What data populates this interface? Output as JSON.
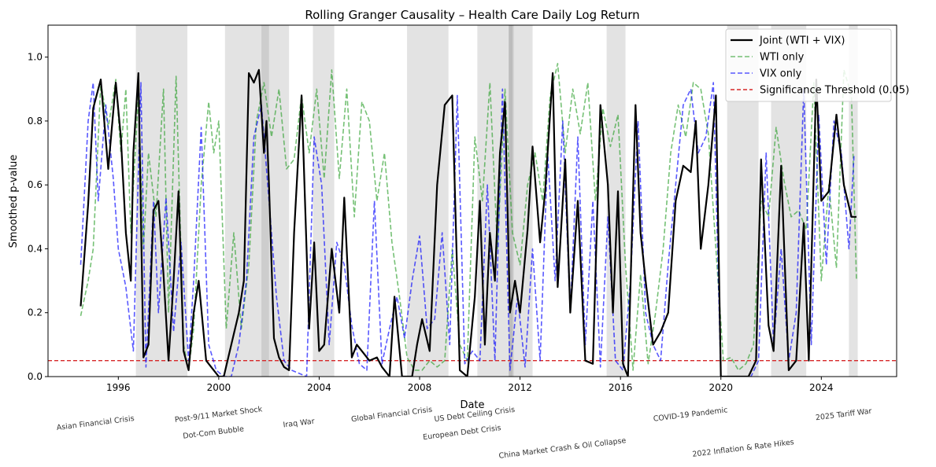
{
  "chart_data": {
    "type": "line",
    "title": "Rolling Granger Causality – Health Care Daily Log Return",
    "xlabel": "Date",
    "ylabel": "Smoothed p-value",
    "xlim": [
      1993.2,
      2027.0
    ],
    "ylim": [
      0.0,
      1.1
    ],
    "x_ticks": [
      1996,
      2000,
      2004,
      2008,
      2012,
      2016,
      2020,
      2024
    ],
    "y_ticks": [
      0.0,
      0.2,
      0.4,
      0.6,
      0.8,
      1.0
    ],
    "y_tick_labels": [
      "0.0",
      "0.2",
      "0.4",
      "0.6",
      "0.8",
      "1.0"
    ],
    "grid": false,
    "legend_position": "top-right",
    "threshold": {
      "name": "Significance Threshold (0.05)",
      "value": 0.05,
      "color": "#d62728",
      "style": "dashed"
    },
    "shaded_periods": [
      {
        "label": "Asian Financial Crisis",
        "start": 1996.7,
        "end": 1998.75
      },
      {
        "label": "Dot-Com Bubble",
        "start": 2000.25,
        "end": 2002.8
      },
      {
        "label": "Post-9/11 Market Shock",
        "start": 2001.7,
        "end": 2002.0
      },
      {
        "label": "Iraq War",
        "start": 2003.75,
        "end": 2004.6
      },
      {
        "label": "Global Financial Crisis",
        "start": 2007.5,
        "end": 2009.15
      },
      {
        "label": "European Debt Crisis",
        "start": 2010.3,
        "end": 2011.75
      },
      {
        "label": "US Debt Ceiling Crisis",
        "start": 2011.55,
        "end": 2011.7
      },
      {
        "label": "China Market Crash & Oil Collapse",
        "start": 2011.55,
        "end": 2012.5
      },
      {
        "label": "China Market Crash & Oil Collapse",
        "start": 2015.45,
        "end": 2016.2
      },
      {
        "label": "COVID-19 Pandemic",
        "start": 2020.25,
        "end": 2021.5
      },
      {
        "label": "2022 Inflation & Rate Hikes",
        "start": 2022.0,
        "end": 2023.4
      },
      {
        "label": "2025 Tariff War",
        "start": 2025.1,
        "end": 2025.45
      }
    ],
    "event_labels": [
      {
        "text": "Asian Financial Crisis",
        "x": 1995.1,
        "row": 1
      },
      {
        "text": "Post-9/11 Market Shock",
        "x": 2000.0,
        "row": 0
      },
      {
        "text": "Dot-Com Bubble",
        "x": 1999.8,
        "row": 2
      },
      {
        "text": "Iraq War",
        "x": 2003.2,
        "row": 1
      },
      {
        "text": "Global Financial Crisis",
        "x": 2006.9,
        "row": 0
      },
      {
        "text": "US Debt Ceiling Crisis",
        "x": 2010.2,
        "row": 0
      },
      {
        "text": "European Debt Crisis",
        "x": 2009.7,
        "row": 2
      },
      {
        "text": "China Market Crash & Oil Collapse",
        "x": 2013.7,
        "row": 3
      },
      {
        "text": "COVID-19 Pandemic",
        "x": 2018.8,
        "row": 0
      },
      {
        "text": "2022 Inflation & Rate Hikes",
        "x": 2020.9,
        "row": 3
      },
      {
        "text": "2025 Tariff War",
        "x": 2024.9,
        "row": 0
      }
    ],
    "series": [
      {
        "name": "Joint (WTI + VIX)",
        "color": "#000000",
        "style": "solid",
        "x": [
          1994.5,
          1994.8,
          1995.0,
          1995.3,
          1995.6,
          1995.9,
          1996.1,
          1996.3,
          1996.5,
          1996.6,
          1996.8,
          1997.0,
          1997.2,
          1997.4,
          1997.6,
          1997.8,
          1998.0,
          1998.2,
          1998.4,
          1998.6,
          1998.8,
          1999.0,
          1999.2,
          1999.5,
          1999.8,
          2000.0,
          2000.2,
          2000.5,
          2000.8,
          2001.0,
          2001.2,
          2001.4,
          2001.6,
          2001.8,
          2001.9,
          2002.0,
          2002.2,
          2002.4,
          2002.6,
          2002.8,
          2003.0,
          2003.3,
          2003.6,
          2003.8,
          2004.0,
          2004.2,
          2004.5,
          2004.8,
          2005.0,
          2005.3,
          2005.5,
          2005.8,
          2006.0,
          2006.3,
          2006.5,
          2006.8,
          2007.0,
          2007.3,
          2007.5,
          2007.7,
          2007.9,
          2008.1,
          2008.4,
          2008.7,
          2009.0,
          2009.3,
          2009.6,
          2009.9,
          2010.2,
          2010.4,
          2010.6,
          2010.8,
          2011.0,
          2011.2,
          2011.4,
          2011.6,
          2011.8,
          2012.0,
          2012.3,
          2012.5,
          2012.8,
          2013.0,
          2013.3,
          2013.5,
          2013.8,
          2014.0,
          2014.3,
          2014.6,
          2014.9,
          2015.2,
          2015.5,
          2015.7,
          2015.9,
          2016.1,
          2016.3,
          2016.6,
          2016.8,
          2017.0,
          2017.3,
          2017.6,
          2017.9,
          2018.2,
          2018.5,
          2018.8,
          2019.0,
          2019.2,
          2019.5,
          2019.8,
          2020.0,
          2020.2,
          2020.5,
          2020.8,
          2021.1,
          2021.4,
          2021.6,
          2021.9,
          2022.1,
          2022.4,
          2022.7,
          2023.0,
          2023.3,
          2023.5,
          2023.8,
          2024.0,
          2024.3,
          2024.6,
          2024.9,
          2025.2,
          2025.4
        ],
        "values": [
          0.22,
          0.54,
          0.84,
          0.93,
          0.65,
          0.92,
          0.75,
          0.45,
          0.3,
          0.7,
          0.95,
          0.06,
          0.1,
          0.52,
          0.55,
          0.32,
          0.05,
          0.3,
          0.58,
          0.08,
          0.02,
          0.2,
          0.3,
          0.05,
          0.02,
          0.0,
          0.0,
          0.1,
          0.2,
          0.3,
          0.95,
          0.92,
          0.96,
          0.7,
          0.8,
          0.6,
          0.12,
          0.06,
          0.03,
          0.02,
          0.45,
          0.88,
          0.15,
          0.42,
          0.08,
          0.1,
          0.4,
          0.2,
          0.56,
          0.06,
          0.1,
          0.07,
          0.05,
          0.06,
          0.03,
          0.0,
          0.25,
          0.0,
          0.0,
          0.0,
          0.1,
          0.18,
          0.08,
          0.6,
          0.85,
          0.88,
          0.02,
          0.0,
          0.25,
          0.55,
          0.1,
          0.45,
          0.3,
          0.7,
          0.86,
          0.2,
          0.3,
          0.2,
          0.46,
          0.72,
          0.42,
          0.58,
          0.95,
          0.28,
          0.68,
          0.2,
          0.55,
          0.05,
          0.04,
          0.85,
          0.6,
          0.2,
          0.58,
          0.04,
          0.0,
          0.85,
          0.45,
          0.3,
          0.1,
          0.14,
          0.2,
          0.55,
          0.66,
          0.64,
          0.8,
          0.4,
          0.6,
          0.88,
          0.0,
          0.0,
          0.0,
          0.0,
          0.0,
          0.05,
          0.68,
          0.16,
          0.08,
          0.66,
          0.02,
          0.05,
          0.48,
          0.05,
          0.93,
          0.55,
          0.58,
          0.82,
          0.6,
          0.5,
          0.5
        ]
      },
      {
        "name": "WTI only",
        "color": "#2ca02c",
        "style": "dashed",
        "x": [
          1994.5,
          1994.8,
          1995.0,
          1995.3,
          1995.6,
          1995.9,
          1996.1,
          1996.3,
          1996.5,
          1996.8,
          1997.0,
          1997.2,
          1997.5,
          1997.8,
          1998.0,
          1998.3,
          1998.6,
          1998.8,
          1999.0,
          1999.3,
          1999.6,
          1999.8,
          2000.0,
          2000.3,
          2000.6,
          2000.9,
          2001.2,
          2001.5,
          2001.8,
          2002.1,
          2002.4,
          2002.7,
          2003.0,
          2003.3,
          2003.6,
          2003.9,
          2004.2,
          2004.5,
          2004.8,
          2005.1,
          2005.4,
          2005.7,
          2006.0,
          2006.3,
          2006.6,
          2006.9,
          2007.2,
          2007.5,
          2007.8,
          2008.1,
          2008.4,
          2008.7,
          2009.0,
          2009.3,
          2009.6,
          2009.9,
          2010.2,
          2010.5,
          2010.8,
          2011.1,
          2011.4,
          2011.7,
          2012.0,
          2012.3,
          2012.6,
          2012.9,
          2013.2,
          2013.5,
          2013.8,
          2014.1,
          2014.4,
          2014.7,
          2015.0,
          2015.3,
          2015.6,
          2015.9,
          2016.2,
          2016.5,
          2016.8,
          2017.1,
          2017.4,
          2017.7,
          2018.0,
          2018.3,
          2018.6,
          2018.9,
          2019.2,
          2019.5,
          2019.8,
          2020.1,
          2020.4,
          2020.7,
          2021.0,
          2021.3,
          2021.6,
          2021.9,
          2022.2,
          2022.5,
          2022.8,
          2023.1,
          2023.4,
          2023.7,
          2024.0,
          2024.3,
          2024.6,
          2024.9,
          2025.2,
          2025.4
        ],
        "values": [
          0.19,
          0.3,
          0.4,
          0.92,
          0.78,
          0.93,
          0.7,
          0.9,
          0.45,
          0.88,
          0.4,
          0.7,
          0.5,
          0.9,
          0.2,
          0.94,
          0.1,
          0.02,
          0.15,
          0.6,
          0.86,
          0.7,
          0.8,
          0.15,
          0.45,
          0.15,
          0.35,
          0.8,
          0.92,
          0.75,
          0.9,
          0.65,
          0.68,
          0.88,
          0.7,
          0.9,
          0.62,
          0.96,
          0.62,
          0.9,
          0.5,
          0.86,
          0.8,
          0.55,
          0.7,
          0.42,
          0.25,
          0.06,
          0.02,
          0.02,
          0.05,
          0.03,
          0.05,
          0.4,
          0.1,
          0.05,
          0.75,
          0.55,
          0.92,
          0.4,
          0.9,
          0.45,
          0.35,
          0.6,
          0.7,
          0.55,
          0.88,
          0.98,
          0.7,
          0.9,
          0.76,
          0.92,
          0.55,
          0.84,
          0.72,
          0.82,
          0.35,
          0.02,
          0.32,
          0.04,
          0.2,
          0.4,
          0.7,
          0.85,
          0.75,
          0.92,
          0.9,
          0.76,
          0.4,
          0.05,
          0.06,
          0.02,
          0.04,
          0.1,
          0.55,
          0.5,
          0.78,
          0.62,
          0.5,
          0.52,
          0.46,
          0.92,
          0.3,
          0.6,
          0.34,
          0.96,
          0.88,
          0.3
        ]
      },
      {
        "name": "VIX only",
        "color": "#0000ff",
        "style": "dashed",
        "x": [
          1994.5,
          1994.8,
          1995.0,
          1995.2,
          1995.5,
          1995.8,
          1996.0,
          1996.3,
          1996.6,
          1996.9,
          1997.1,
          1997.4,
          1997.6,
          1997.9,
          1998.2,
          1998.5,
          1998.8,
          1999.0,
          1999.3,
          1999.6,
          1999.9,
          2000.2,
          2000.5,
          2000.8,
          2001.1,
          2001.4,
          2001.7,
          2002.0,
          2002.3,
          2002.6,
          2002.9,
          2003.2,
          2003.5,
          2003.8,
          2004.1,
          2004.4,
          2004.7,
          2005.0,
          2005.3,
          2005.6,
          2005.9,
          2006.2,
          2006.5,
          2006.8,
          2007.1,
          2007.4,
          2007.7,
          2008.0,
          2008.3,
          2008.6,
          2008.9,
          2009.2,
          2009.5,
          2009.8,
          2010.1,
          2010.4,
          2010.7,
          2011.0,
          2011.3,
          2011.6,
          2011.9,
          2012.2,
          2012.5,
          2012.8,
          2013.1,
          2013.4,
          2013.7,
          2014.0,
          2014.3,
          2014.6,
          2014.9,
          2015.2,
          2015.5,
          2015.8,
          2016.1,
          2016.4,
          2016.7,
          2017.0,
          2017.3,
          2017.6,
          2017.9,
          2018.2,
          2018.5,
          2018.8,
          2019.1,
          2019.4,
          2019.7,
          2020.0,
          2020.3,
          2020.6,
          2020.9,
          2021.2,
          2021.5,
          2021.8,
          2022.1,
          2022.4,
          2022.7,
          2023.0,
          2023.3,
          2023.6,
          2023.9,
          2024.2,
          2024.5,
          2024.8,
          2025.1,
          2025.3
        ],
        "values": [
          0.35,
          0.8,
          0.92,
          0.55,
          0.85,
          0.62,
          0.4,
          0.28,
          0.08,
          0.92,
          0.03,
          0.55,
          0.2,
          0.56,
          0.14,
          0.42,
          0.05,
          0.3,
          0.78,
          0.1,
          0.02,
          0.0,
          0.0,
          0.1,
          0.3,
          0.75,
          0.85,
          0.55,
          0.25,
          0.05,
          0.02,
          0.01,
          0.0,
          0.75,
          0.6,
          0.1,
          0.42,
          0.35,
          0.16,
          0.04,
          0.02,
          0.55,
          0.04,
          0.15,
          0.25,
          0.12,
          0.3,
          0.44,
          0.15,
          0.18,
          0.45,
          0.1,
          0.88,
          0.04,
          0.08,
          0.05,
          0.6,
          0.05,
          0.9,
          0.02,
          0.25,
          0.03,
          0.4,
          0.05,
          0.7,
          0.3,
          0.8,
          0.2,
          0.75,
          0.1,
          0.55,
          0.03,
          0.5,
          0.05,
          0.02,
          0.3,
          0.8,
          0.2,
          0.1,
          0.05,
          0.35,
          0.6,
          0.85,
          0.9,
          0.7,
          0.75,
          0.92,
          0.0,
          0.0,
          0.0,
          0.0,
          0.0,
          0.05,
          0.7,
          0.1,
          0.4,
          0.05,
          0.2,
          0.9,
          0.1,
          0.82,
          0.35,
          0.8,
          0.7,
          0.4,
          0.69
        ]
      }
    ]
  }
}
